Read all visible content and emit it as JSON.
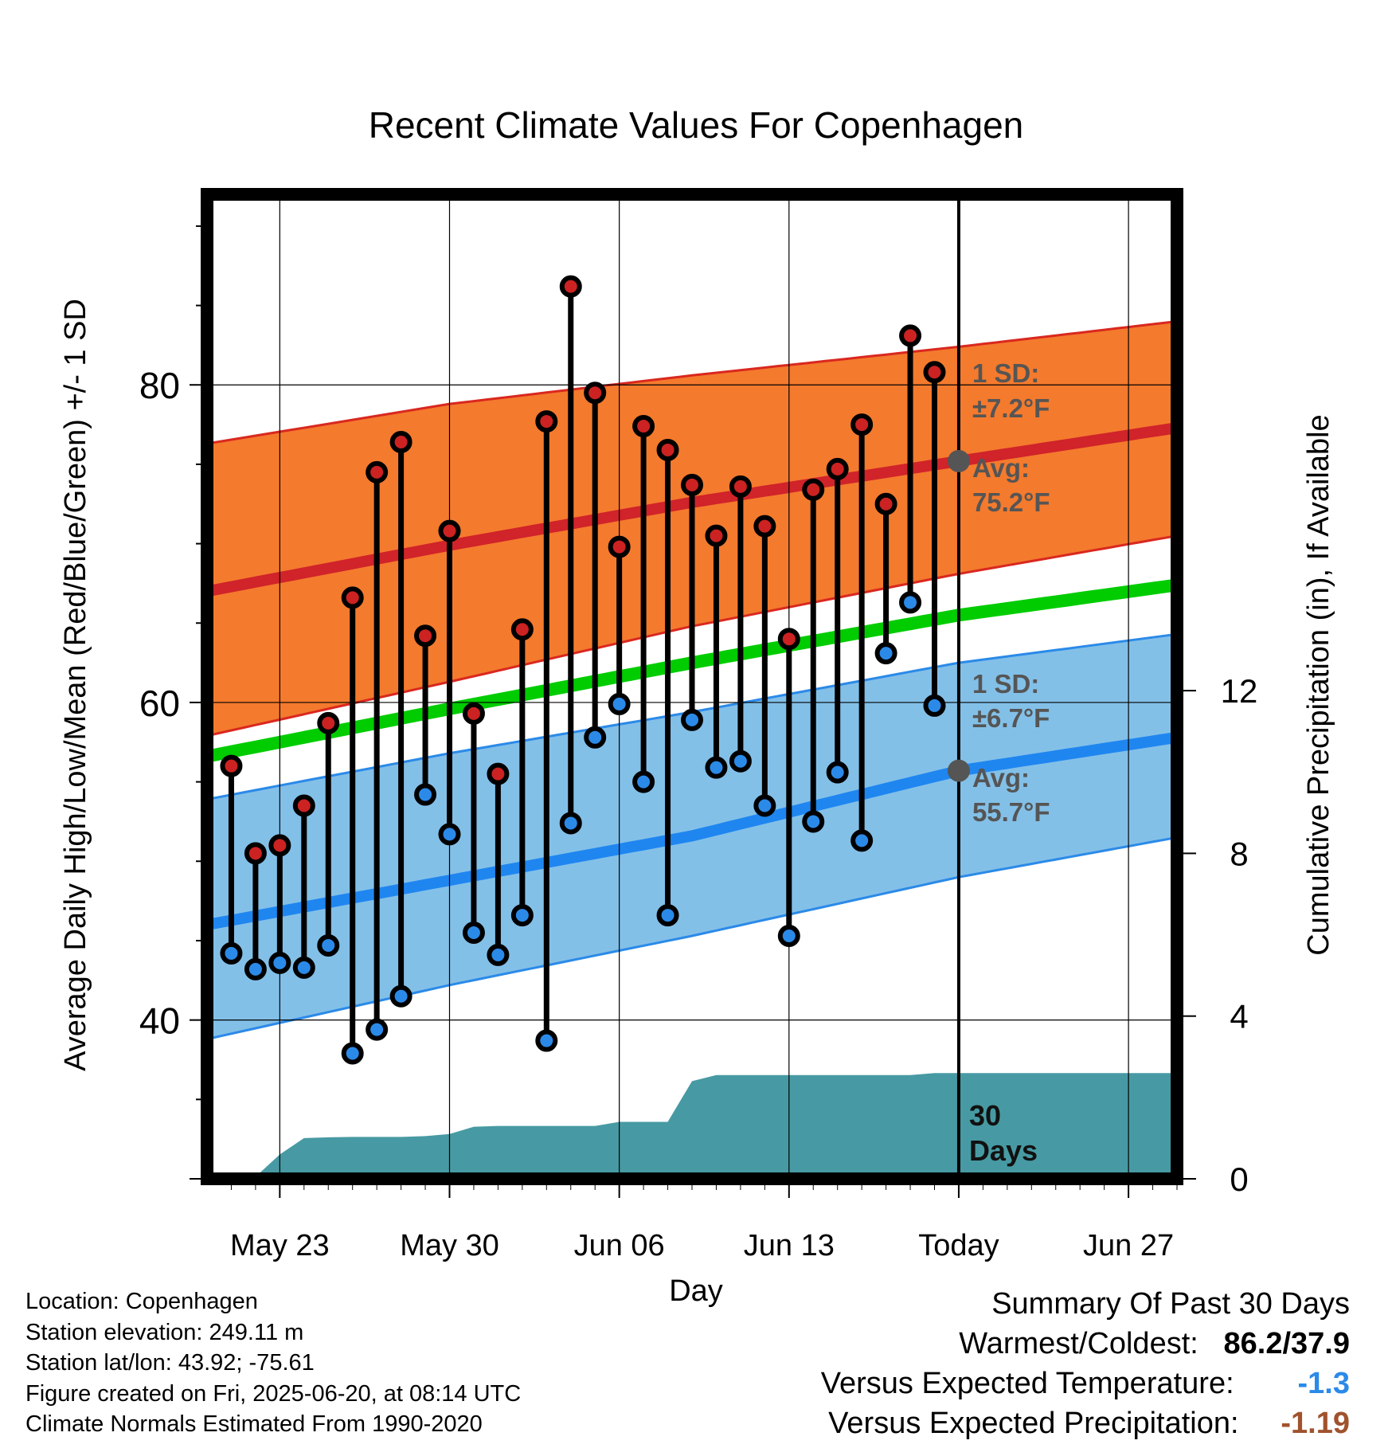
{
  "chart_data": {
    "type": "line",
    "title": "Recent Climate Values For Copenhagen",
    "xlabel": "Day",
    "ylabel": "Average Daily High/Low/Mean (Red/Blue/Green) +/- 1 SD",
    "y2label": "Cumulative Precipitation (in), If Available",
    "ylim": [
      30,
      92
    ],
    "y2lim": [
      0,
      24.2
    ],
    "yticks": [
      40,
      60,
      80
    ],
    "y2ticks": [
      0,
      4,
      8,
      12
    ],
    "x_range_days": [
      0,
      40
    ],
    "xtick_labels": [
      {
        "day": 3,
        "label": "May 23"
      },
      {
        "day": 10,
        "label": "May 30"
      },
      {
        "day": 17,
        "label": "Jun 06"
      },
      {
        "day": 24,
        "label": "Jun 13"
      },
      {
        "day": 31,
        "label": "Today"
      },
      {
        "day": 38,
        "label": "Jun 27"
      }
    ],
    "today_day": 31,
    "grid": true,
    "normals": {
      "avg_high": [
        [
          0,
          67.0
        ],
        [
          10,
          69.9
        ],
        [
          20,
          72.6
        ],
        [
          31,
          75.2
        ],
        [
          40,
          77.3
        ]
      ],
      "high_upper": [
        [
          0,
          76.3
        ],
        [
          10,
          78.8
        ],
        [
          20,
          80.6
        ],
        [
          31,
          82.4
        ],
        [
          40,
          84.0
        ]
      ],
      "high_lower": [
        [
          0,
          57.9
        ],
        [
          10,
          61.3
        ],
        [
          20,
          64.8
        ],
        [
          31,
          68.1
        ],
        [
          40,
          70.5
        ]
      ],
      "mean": [
        [
          0,
          56.6
        ],
        [
          10,
          59.6
        ],
        [
          20,
          62.5
        ],
        [
          31,
          65.5
        ],
        [
          40,
          67.4
        ]
      ],
      "avg_low": [
        [
          0,
          46.0
        ],
        [
          10,
          48.8
        ],
        [
          20,
          51.6
        ],
        [
          31,
          55.7
        ],
        [
          40,
          57.8
        ]
      ],
      "low_upper": [
        [
          0,
          53.9
        ],
        [
          10,
          56.8
        ],
        [
          20,
          59.4
        ],
        [
          31,
          62.5
        ],
        [
          40,
          64.3
        ]
      ],
      "low_lower": [
        [
          0,
          38.8
        ],
        [
          10,
          42.2
        ],
        [
          20,
          45.3
        ],
        [
          31,
          49.0
        ],
        [
          40,
          51.5
        ]
      ]
    },
    "series": [
      {
        "name": "High",
        "color": "#cc2222",
        "values": [
          56.0,
          50.5,
          51.0,
          53.5,
          58.7,
          66.6,
          74.5,
          76.4,
          64.2,
          70.8,
          59.3,
          55.5,
          64.6,
          77.7,
          86.2,
          79.5,
          69.8,
          77.4,
          75.9,
          73.7,
          70.5,
          73.6,
          71.1,
          64.0,
          73.4,
          74.7,
          77.5,
          72.5,
          83.1,
          80.8
        ]
      },
      {
        "name": "Low",
        "color": "#2b8ae8",
        "values": [
          44.2,
          43.2,
          43.6,
          43.3,
          44.7,
          37.9,
          39.4,
          41.5,
          54.2,
          51.7,
          45.5,
          44.1,
          46.6,
          38.7,
          52.4,
          57.8,
          59.9,
          55.0,
          46.6,
          58.9,
          55.9,
          56.3,
          53.5,
          45.3,
          52.5,
          55.6,
          51.3,
          63.1,
          66.3,
          59.8
        ]
      }
    ],
    "precip_cumulative": [
      [
        0,
        0.0
      ],
      [
        1,
        0.0
      ],
      [
        2,
        0.05
      ],
      [
        3,
        0.6
      ],
      [
        4,
        1.0
      ],
      [
        5,
        1.02
      ],
      [
        6,
        1.03
      ],
      [
        7,
        1.03
      ],
      [
        8,
        1.03
      ],
      [
        9,
        1.05
      ],
      [
        10,
        1.1
      ],
      [
        11,
        1.28
      ],
      [
        12,
        1.3
      ],
      [
        13,
        1.3
      ],
      [
        14,
        1.3
      ],
      [
        15,
        1.3
      ],
      [
        16,
        1.3
      ],
      [
        17,
        1.4
      ],
      [
        18,
        1.4
      ],
      [
        19,
        1.4
      ],
      [
        20,
        2.4
      ],
      [
        21,
        2.55
      ],
      [
        22,
        2.55
      ],
      [
        23,
        2.55
      ],
      [
        24,
        2.55
      ],
      [
        25,
        2.55
      ],
      [
        26,
        2.55
      ],
      [
        27,
        2.55
      ],
      [
        28,
        2.55
      ],
      [
        29,
        2.55
      ],
      [
        30,
        2.6
      ],
      [
        31,
        2.6
      ],
      [
        40,
        2.6
      ]
    ],
    "annotations": {
      "high_sd": [
        "1 SD:",
        "±7.2°F"
      ],
      "high_avg": [
        "Avg:",
        "75.2°F"
      ],
      "low_sd": [
        "1 SD:",
        "±6.7°F"
      ],
      "low_avg": [
        "Avg:",
        "55.7°F"
      ],
      "period": [
        "30",
        "Days"
      ]
    },
    "colors": {
      "high_band": "#f47a2d",
      "high_edge": "#d9281f",
      "high_line": "#d0232a",
      "low_band": "#83c0e8",
      "low_edge": "#2b8ae8",
      "low_line": "#1f86f0",
      "mean_line": "#00cc00",
      "precip": "#479aa3",
      "annot": "#555555"
    }
  },
  "info": {
    "location": "Location: Copenhagen",
    "elevation": "Station elevation: 249.11 m",
    "latlon": "Station lat/lon: 43.92; -75.61",
    "created": "Figure created on Fri, 2025-06-20, at 08:14 UTC",
    "normals": "Climate Normals Estimated From 1990-2020"
  },
  "summary": {
    "title": "Summary Of Past 30 Days",
    "warmest_label": "Warmest/Coldest:",
    "warmest_value": "86.2/37.9",
    "temp_label": "Versus Expected Temperature:",
    "temp_value": "-1.3",
    "temp_color": "#2b8ae8",
    "precip_label": "Versus Expected Precipitation:",
    "precip_value": "-1.19",
    "precip_color": "#a0522d"
  }
}
